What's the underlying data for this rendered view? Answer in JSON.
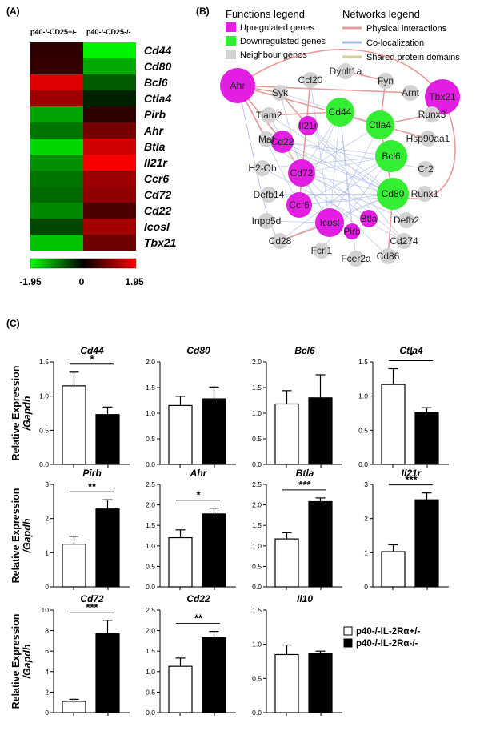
{
  "panels": {
    "a": "(A)",
    "b": "(B)",
    "c": "(C)"
  },
  "heatmap": {
    "col1": "p40-/-CD25+/-",
    "col2": "p40-/-CD25-/-",
    "scale_min": "-1.95",
    "scale_mid": "0",
    "scale_max": "1.95",
    "rows": [
      {
        "gene": "Cd44",
        "v1": 0.35,
        "v2": -1.85
      },
      {
        "gene": "Cd80",
        "v1": 0.4,
        "v2": -1.3
      },
      {
        "gene": "Bcl6",
        "v1": 1.7,
        "v2": -0.7
      },
      {
        "gene": "Ctla4",
        "v1": 1.2,
        "v2": -0.25
      },
      {
        "gene": "Pirb",
        "v1": -1.25,
        "v2": 0.35
      },
      {
        "gene": "Ahr",
        "v1": -0.9,
        "v2": 0.9
      },
      {
        "gene": "Btla",
        "v1": -1.65,
        "v2": 1.6
      },
      {
        "gene": "Il21r",
        "v1": -1.1,
        "v2": 1.9
      },
      {
        "gene": "Ccr6",
        "v1": -0.9,
        "v2": 1.2
      },
      {
        "gene": "Cd72",
        "v1": -0.8,
        "v2": 1.1
      },
      {
        "gene": "Cd22",
        "v1": -1.05,
        "v2": 0.6
      },
      {
        "gene": "Icosl",
        "v1": -0.55,
        "v2": 1.25
      },
      {
        "gene": "Tbx21",
        "v1": -1.5,
        "v2": 0.85
      }
    ]
  },
  "network": {
    "functions_title": "Functions legend",
    "networks_title": "Networks legend",
    "functions": [
      {
        "label": "Upregulated genes",
        "color": "#e11ee1"
      },
      {
        "label": "Downregulated genes",
        "color": "#33ee33"
      },
      {
        "label": "Neighbour genes",
        "color": "#d2d2d2"
      }
    ],
    "links": [
      {
        "label": "Physical interactions",
        "color": "#e89a9a"
      },
      {
        "label": "Co-localization",
        "color": "#a9b9e6"
      },
      {
        "label": "Shared protein domains",
        "color": "#dcd096"
      }
    ],
    "nodes": {
      "Ahr": "Ahr",
      "Syk": "Syk",
      "Ccl20": "Ccl20",
      "Dynlt1a": "Dynlt1a",
      "Fyn": "Fyn",
      "Arnt": "Arnt",
      "Tbx21": "Tbx21",
      "Tiam2": "Tiam2",
      "Il21r": "Il21r",
      "Cd44": "Cd44",
      "Ctla4": "Ctla4",
      "Runx3": "Runx3",
      "Hsp90aa1": "Hsp90aa1",
      "Maf": "Maf",
      "Cd22": "Cd22",
      "Bcl6": "Bcl6",
      "H2Ob": "H2-Ob",
      "Cd72": "Cd72",
      "Cr2": "Cr2",
      "Defb14": "Defb14",
      "Cd80": "Cd80",
      "Runx1": "Runx1",
      "Ccr6": "Ccr6",
      "Inpp5d": "Inpp5d",
      "Icosl": "Icosl",
      "Btla": "Btla",
      "Defb2": "Defb2",
      "Pirb": "Pirb",
      "Cd28": "Cd28",
      "Cd274": "Cd274",
      "Fcrl1": "Fcrl1",
      "Fcer2a": "Fcer2a",
      "Cd86": "Cd86"
    }
  },
  "bar_legend": {
    "open": "p40-/-IL-2Rα+/-",
    "filled": "p40-/-IL-2Rα-/-"
  },
  "y_axis_label": [
    "Relative Expression",
    "/Gapdh"
  ],
  "chart_data": [
    {
      "type": "bar",
      "title": "Cd44",
      "categories": [
        "p40-/-IL-2Rα+/-",
        "p40-/-IL-2Rα-/-"
      ],
      "values": [
        1.15,
        0.73
      ],
      "errors": [
        0.2,
        0.11
      ],
      "ylim": [
        0,
        1.5
      ],
      "yticks": [
        "0.0",
        "0.5",
        "1.0",
        "1.5"
      ],
      "sig": "*"
    },
    {
      "type": "bar",
      "title": "Cd80",
      "categories": [
        "p40-/-IL-2Rα+/-",
        "p40-/-IL-2Rα-/-"
      ],
      "values": [
        1.15,
        1.28
      ],
      "errors": [
        0.18,
        0.23
      ],
      "ylim": [
        0,
        2.0
      ],
      "yticks": [
        "0.0",
        "0.5",
        "1.0",
        "1.5",
        "2.0"
      ],
      "sig": ""
    },
    {
      "type": "bar",
      "title": "Bcl6",
      "categories": [
        "p40-/-IL-2Rα+/-",
        "p40-/-IL-2Rα-/-"
      ],
      "values": [
        1.18,
        1.3
      ],
      "errors": [
        0.26,
        0.45
      ],
      "ylim": [
        0,
        2.0
      ],
      "yticks": [
        "0.0",
        "0.5",
        "1.0",
        "1.5",
        "2.0"
      ],
      "sig": ""
    },
    {
      "type": "bar",
      "title": "Ctla4",
      "categories": [
        "p40-/-IL-2Rα+/-",
        "p40-/-IL-2Rα-/-"
      ],
      "values": [
        1.17,
        0.76
      ],
      "errors": [
        0.23,
        0.07
      ],
      "ylim": [
        0,
        1.5
      ],
      "yticks": [
        "0.0",
        "0.5",
        "1.0",
        "1.5"
      ],
      "sig": "*"
    },
    {
      "type": "bar",
      "title": "Pirb",
      "categories": [
        "p40-/-IL-2Rα+/-",
        "p40-/-IL-2Rα-/-"
      ],
      "values": [
        1.25,
        2.28
      ],
      "errors": [
        0.23,
        0.27
      ],
      "ylim": [
        0,
        3
      ],
      "yticks": [
        "0",
        "1",
        "2",
        "3"
      ],
      "sig": "**"
    },
    {
      "type": "bar",
      "title": "Ahr",
      "categories": [
        "p40-/-IL-2Rα+/-",
        "p40-/-IL-2Rα-/-"
      ],
      "values": [
        1.2,
        1.78
      ],
      "errors": [
        0.19,
        0.14
      ],
      "ylim": [
        0,
        2.5
      ],
      "yticks": [
        "0.0",
        "0.5",
        "1.0",
        "1.5",
        "2.0",
        "2.5"
      ],
      "sig": "*"
    },
    {
      "type": "bar",
      "title": "Btla",
      "categories": [
        "p40-/-IL-2Rα+/-",
        "p40-/-IL-2Rα-/-"
      ],
      "values": [
        1.17,
        2.08
      ],
      "errors": [
        0.15,
        0.09
      ],
      "ylim": [
        0,
        2.5
      ],
      "yticks": [
        "0.0",
        "0.5",
        "1.0",
        "1.5",
        "2.0",
        "2.5"
      ],
      "sig": "***"
    },
    {
      "type": "bar",
      "title": "Il21r",
      "categories": [
        "p40-/-IL-2Rα+/-",
        "p40-/-IL-2Rα-/-"
      ],
      "values": [
        1.03,
        2.55
      ],
      "errors": [
        0.2,
        0.2
      ],
      "ylim": [
        0,
        3
      ],
      "yticks": [
        "0",
        "1",
        "2",
        "3"
      ],
      "sig": "***"
    },
    {
      "type": "bar",
      "title": "Cd72",
      "categories": [
        "p40-/-IL-2Rα+/-",
        "p40-/-IL-2Rα-/-"
      ],
      "values": [
        1.1,
        7.7
      ],
      "errors": [
        0.2,
        1.3
      ],
      "ylim": [
        0,
        10
      ],
      "yticks": [
        "0",
        "2",
        "4",
        "6",
        "8",
        "10"
      ],
      "sig": "***"
    },
    {
      "type": "bar",
      "title": "Cd22",
      "categories": [
        "p40-/-IL-2Rα+/-",
        "p40-/-IL-2Rα-/-"
      ],
      "values": [
        1.13,
        1.83
      ],
      "errors": [
        0.2,
        0.15
      ],
      "ylim": [
        0,
        2.5
      ],
      "yticks": [
        "0.0",
        "0.5",
        "1.0",
        "1.5",
        "2.0",
        "2.5"
      ],
      "sig": "**"
    },
    {
      "type": "bar",
      "title": "Il10",
      "categories": [
        "p40-/-IL-2Rα+/-",
        "p40-/-IL-2Rα-/-"
      ],
      "values": [
        0.85,
        0.86
      ],
      "errors": [
        0.14,
        0.04
      ],
      "ylim": [
        0,
        1.5
      ],
      "yticks": [
        "0.0",
        "0.5",
        "1.0",
        "1.5"
      ],
      "sig": ""
    }
  ]
}
